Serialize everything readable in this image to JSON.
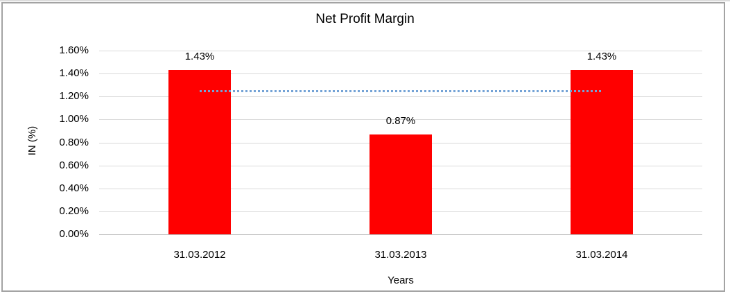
{
  "chart_data": {
    "type": "bar",
    "title": "Net Profit Margin",
    "categories": [
      "31.03.2012",
      "31.03.2013",
      "31.03.2014"
    ],
    "values": [
      1.43,
      0.87,
      1.43
    ],
    "data_labels": [
      "1.43%",
      "0.87%",
      "1.43%"
    ],
    "xlabel": "Years",
    "ylabel": "IN (%)",
    "ylim": [
      0,
      1.6
    ],
    "ytick_step": 0.2,
    "ytick_labels": [
      "0.00%",
      "0.20%",
      "0.40%",
      "0.60%",
      "0.80%",
      "1.00%",
      "1.20%",
      "1.40%",
      "1.60%"
    ],
    "grid": true,
    "legend": "none",
    "colors": {
      "bar": "#ff0000",
      "trendline": "#74a3d6",
      "gridline": "#d9d9d9",
      "axis_line": "#bfbfbf",
      "frame_border": "#a3a3a3",
      "text": "#000000"
    },
    "trendline": {
      "style": "dotted",
      "value": 1.25,
      "label": ""
    }
  }
}
